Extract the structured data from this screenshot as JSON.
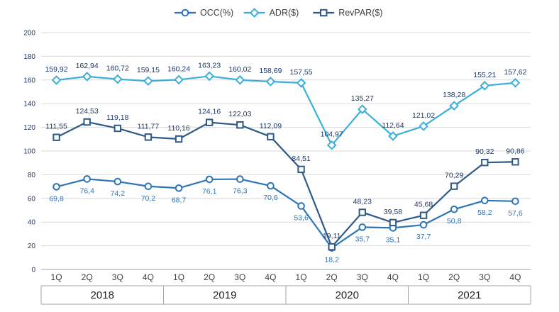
{
  "chart_data": {
    "type": "line",
    "title": "",
    "x_quarters": [
      "1Q",
      "2Q",
      "3Q",
      "4Q",
      "1Q",
      "2Q",
      "3Q",
      "4Q",
      "1Q",
      "2Q",
      "3Q",
      "4Q",
      "1Q",
      "2Q",
      "3Q",
      "4Q"
    ],
    "year_groups": [
      {
        "label": "2018",
        "span": 4
      },
      {
        "label": "2019",
        "span": 4
      },
      {
        "label": "2020",
        "span": 4
      },
      {
        "label": "2021",
        "span": 4
      }
    ],
    "ylim": [
      0,
      200
    ],
    "ytick_step": 20,
    "grid": true,
    "legend_position": "top",
    "series": [
      {
        "name": "OCC(%)",
        "marker": "circle",
        "color": "#2e75b6",
        "label_color": "#2e75b6",
        "label_position": "below",
        "values": [
          69.8,
          76.4,
          74.2,
          70.2,
          68.7,
          76.1,
          76.3,
          70.6,
          53.6,
          18.2,
          35.7,
          35.1,
          37.7,
          50.8,
          58.2,
          57.6
        ],
        "labels": [
          "69,8",
          "76,4",
          "74,2",
          "70,2",
          "68,7",
          "76,1",
          "76,3",
          "70,6",
          "53,6",
          "18,2",
          "35,7",
          "35,1",
          "37,7",
          "50,8",
          "58,2",
          "57,6"
        ]
      },
      {
        "name": "ADR($)",
        "marker": "diamond",
        "color": "#3bafda",
        "label_color": "#1f3864",
        "label_position": "above",
        "values": [
          159.92,
          162.94,
          160.72,
          159.15,
          160.24,
          163.23,
          160.02,
          158.69,
          157.55,
          104.97,
          135.27,
          112.64,
          121.02,
          138.28,
          155.21,
          157.62
        ],
        "labels": [
          "159,92",
          "162,94",
          "160,72",
          "159,15",
          "160,24",
          "163,23",
          "160,02",
          "158,69",
          "157,55",
          "104,97",
          "135,27",
          "112,64",
          "121,02",
          "138,28",
          "155,21",
          "157,62"
        ]
      },
      {
        "name": "RevPAR($)",
        "marker": "square",
        "color": "#2f5a87",
        "label_color": "#1f3864",
        "label_position": "above",
        "values": [
          111.55,
          124.53,
          119.18,
          111.77,
          110.16,
          124.16,
          122.03,
          112.09,
          84.51,
          19.11,
          48.23,
          39.58,
          45.68,
          70.29,
          90.32,
          90.86
        ],
        "labels": [
          "111,55",
          "124,53",
          "119,18",
          "111,77",
          "110,16",
          "124,16",
          "122,03",
          "112,09",
          "84,51",
          "19,11",
          "48,23",
          "39,58",
          "45,68",
          "70,29",
          "90,32",
          "90,86"
        ]
      }
    ]
  }
}
